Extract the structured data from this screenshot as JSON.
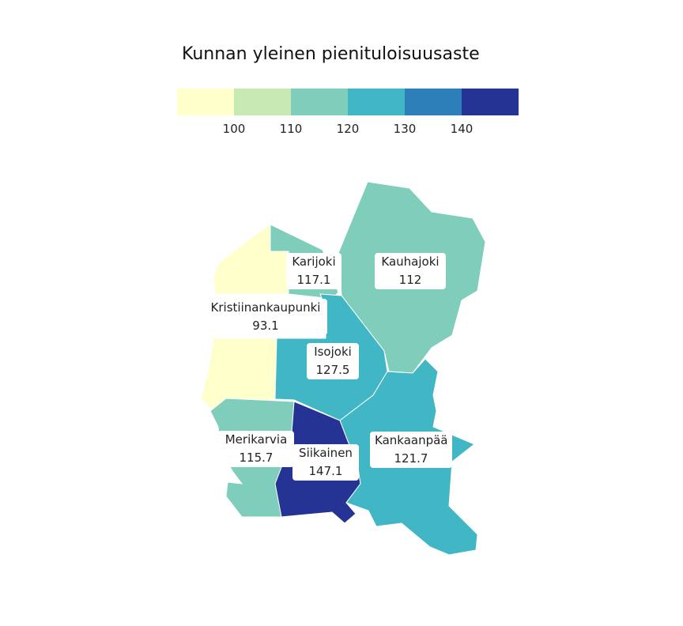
{
  "title": "Kunnan yleinen pienituloisuusaste",
  "legend": {
    "colors": [
      "#ffffcc",
      "#c7e9b4",
      "#7fcdbb",
      "#41b6c4",
      "#2c7fb8",
      "#253494"
    ],
    "ticks": [
      "100",
      "110",
      "120",
      "130",
      "140"
    ]
  },
  "regions": [
    {
      "name": "Karijoki",
      "value": "117.1",
      "color": "#7fcdbb"
    },
    {
      "name": "Kauhajoki",
      "value": "112",
      "color": "#7fcdbb"
    },
    {
      "name": "Kristiinankaupunki",
      "value": "93.1",
      "color": "#ffffcc"
    },
    {
      "name": "Isojoki",
      "value": "127.5",
      "color": "#41b6c4"
    },
    {
      "name": "Merikarvia",
      "value": "115.7",
      "color": "#7fcdbb"
    },
    {
      "name": "Siikainen",
      "value": "147.1",
      "color": "#253494"
    },
    {
      "name": "Kankaanpää",
      "value": "121.7",
      "color": "#41b6c4"
    }
  ]
}
